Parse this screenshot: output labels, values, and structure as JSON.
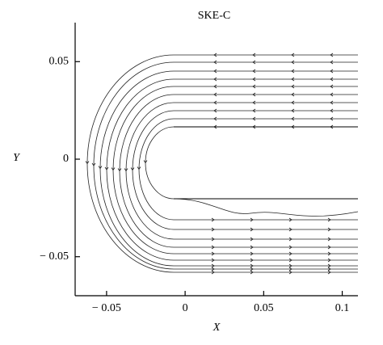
{
  "chart_data": {
    "type": "streamline",
    "title": "SKE-C",
    "x_label": "X",
    "y_label": "Y",
    "xlim": [
      -0.07,
      0.11
    ],
    "ylim": [
      -0.07,
      0.07
    ],
    "xticks": [
      {
        "value": -0.05,
        "label": "− 0.05"
      },
      0,
      0.05,
      0.1
    ],
    "yticks": [
      {
        "value": -0.05,
        "label": "− 0.05"
      },
      0,
      0.05
    ],
    "color": "#000000"
  }
}
